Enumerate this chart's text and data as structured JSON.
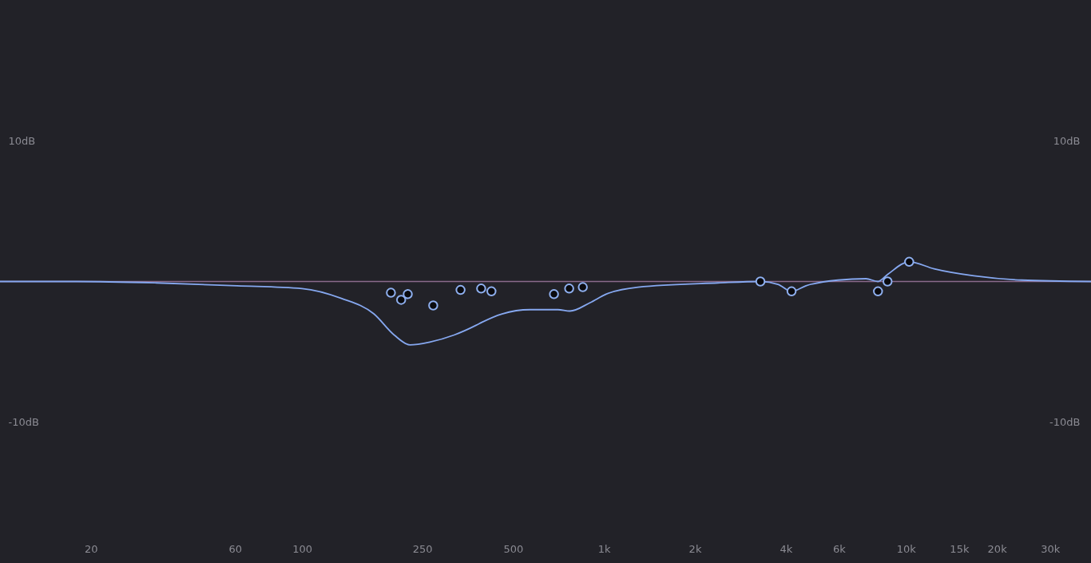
{
  "chart_data": {
    "type": "line",
    "log": "x",
    "xlim": [
      10,
      41000
    ],
    "ylim": [
      -20,
      20
    ],
    "y2lim": [
      -20,
      20
    ],
    "xticks": [
      20,
      60,
      100,
      250,
      500,
      {
        "value": 1000,
        "label": "1k"
      },
      {
        "value": 2000,
        "label": "2k"
      },
      {
        "value": 4000,
        "label": "4k"
      },
      {
        "value": 6000,
        "label": "6k"
      },
      {
        "value": 10000,
        "label": "10k"
      },
      {
        "value": 15000,
        "label": "15k"
      },
      {
        "value": 20000,
        "label": "20k"
      },
      {
        "value": 30000,
        "label": "30k"
      }
    ],
    "yticks": [
      {
        "value": 10,
        "label": "10dB"
      },
      {
        "value": -10,
        "label": "-10dB"
      }
    ],
    "y2ticks": [
      {
        "value": 10,
        "label": "10dB"
      },
      {
        "value": -10,
        "label": "-10dB"
      }
    ],
    "ref_lines": [
      {
        "axis": "y",
        "value": 0,
        "color": "#8a6a8c"
      }
    ],
    "series": [
      {
        "type": "line",
        "color": "#86a8f0",
        "x": [
          10,
          18,
          33,
          61,
          100,
          135,
          173,
          202,
          228,
          265,
          319,
          378,
          394,
          460,
          569,
          704,
          771,
          900,
          1016,
          1297,
          2385,
          3296,
          3770,
          4180,
          4666,
          5956,
          7375,
          8080,
          8690,
          10250,
          12390,
          16800,
          24200,
          41000
        ],
        "values": [
          0,
          0,
          -0.1,
          -0.3,
          -0.5,
          -1.2,
          -2.3,
          -3.8,
          -4.5,
          -4.3,
          -3.8,
          -3.1,
          -2.9,
          -2.3,
          -2.0,
          -2.0,
          -2.1,
          -1.5,
          -0.9,
          -0.4,
          -0.1,
          0,
          -0.2,
          -0.7,
          -0.3,
          0.1,
          0.2,
          0,
          0.5,
          1.4,
          0.9,
          0.4,
          0.1,
          0
        ]
      },
      {
        "type": "scatter",
        "color": "#8fb0f0",
        "marker": "circle",
        "x": [
          197,
          213,
          224,
          272,
          335,
          392,
          424,
          683,
          767,
          851,
          3296,
          4180,
          8080,
          8690,
          10250
        ],
        "values": [
          -0.8,
          -1.3,
          -0.9,
          -1.7,
          -0.6,
          -0.5,
          -0.7,
          -0.9,
          -0.5,
          -0.4,
          0,
          -0.7,
          -0.7,
          0,
          1.4
        ]
      }
    ]
  }
}
